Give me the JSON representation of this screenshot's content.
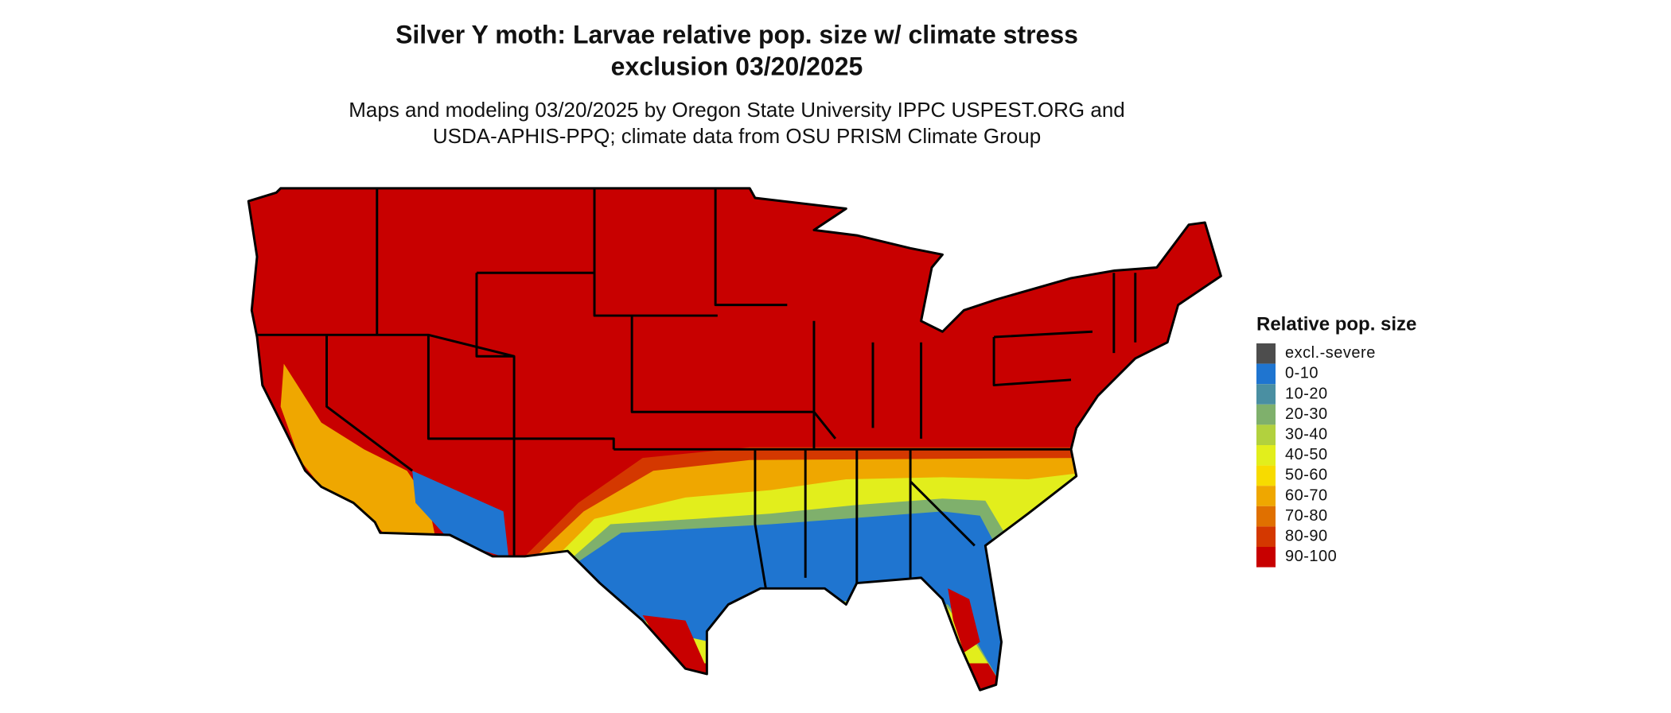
{
  "title": [
    "Silver Y moth: Larvae relative pop. size w/ climate stress",
    "exclusion 03/20/2025"
  ],
  "subtitle": [
    "Maps and modeling 03/20/2025 by Oregon State University IPPC USPEST.ORG and",
    "USDA-APHIS-PPQ; climate data from OSU PRISM Climate Group"
  ],
  "legend": {
    "title": "Relative pop. size",
    "items": [
      {
        "label": "excl.-severe",
        "color": "#4d4d4d"
      },
      {
        "label": "0-10",
        "color": "#1f75d0"
      },
      {
        "label": "10-20",
        "color": "#4a8fa2"
      },
      {
        "label": "20-30",
        "color": "#7fb06c"
      },
      {
        "label": "30-40",
        "color": "#b2d13e"
      },
      {
        "label": "40-50",
        "color": "#e2ee1c"
      },
      {
        "label": "50-60",
        "color": "#f7db00"
      },
      {
        "label": "60-70",
        "color": "#efa700"
      },
      {
        "label": "70-80",
        "color": "#e07000"
      },
      {
        "label": "80-90",
        "color": "#d43800"
      },
      {
        "label": "90-100",
        "color": "#c80000"
      }
    ]
  }
}
